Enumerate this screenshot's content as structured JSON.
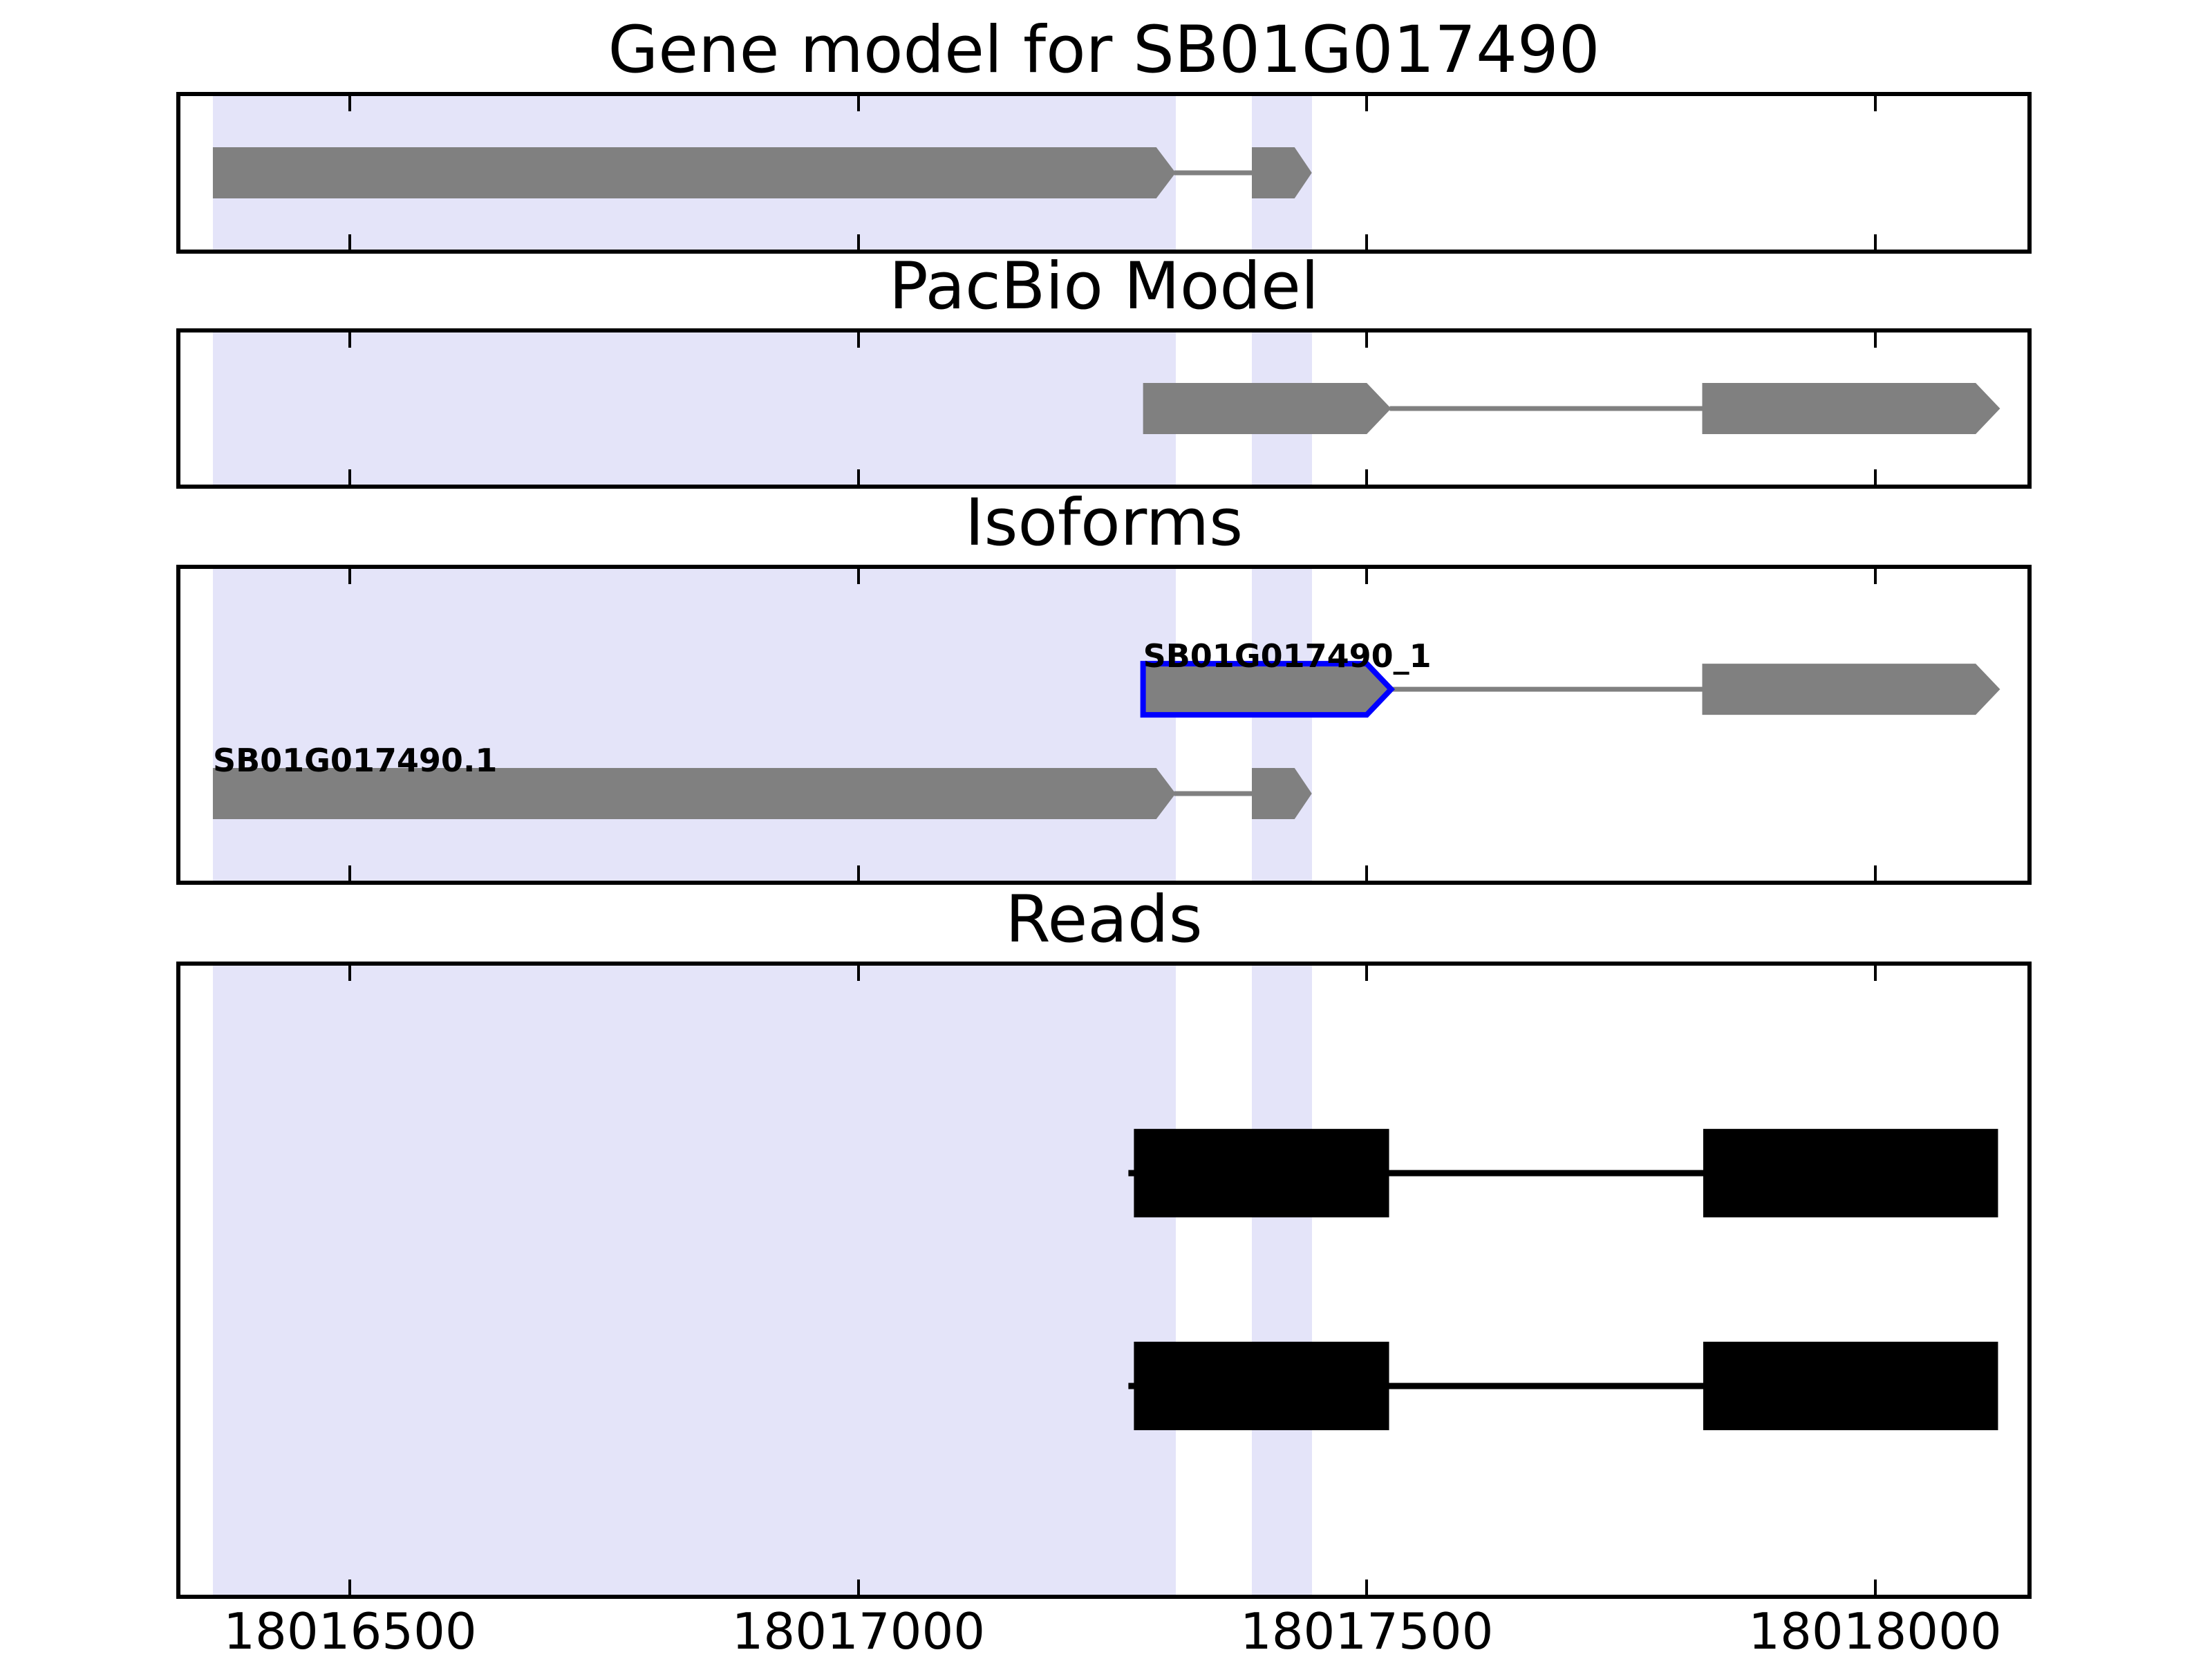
{
  "chart_data": {
    "type": "genomic-feature-tracks",
    "background": "#ffffff",
    "x_axis": {
      "min": 18016329,
      "max": 18018154,
      "ticks": [
        {
          "value": 18016500,
          "label": "18016500"
        },
        {
          "value": 18017000,
          "label": "18017000"
        },
        {
          "value": 18017500,
          "label": "18017500"
        },
        {
          "value": 18018000,
          "label": "18018000"
        }
      ]
    },
    "highlight": {
      "color": "#e4e4f9",
      "spans": [
        {
          "start": 18016365,
          "end": 18017312
        },
        {
          "start": 18017387,
          "end": 18017446
        }
      ]
    },
    "colors": {
      "model_fill": "#808080",
      "model_intron": "#808080",
      "read_fill": "#000000",
      "read_intron": "#000000",
      "selection_outline": "#0000ff",
      "axis": "#000000"
    },
    "panels": [
      {
        "title": "Gene model for SB01G017490",
        "rows": [
          {
            "kind": "model",
            "exons": [
              {
                "start": 18016365,
                "end": 18017293,
                "tip": 18017312
              },
              {
                "start": 18017387,
                "end": 18017429,
                "tip": 18017446
              }
            ]
          }
        ]
      },
      {
        "title": "PacBio Model",
        "rows": [
          {
            "kind": "model",
            "exons": [
              {
                "start": 18017280,
                "end": 18017500,
                "tip": 18017524
              },
              {
                "start": 18017830,
                "end": 18018099,
                "tip": 18018123
              }
            ]
          }
        ]
      },
      {
        "title": "Isoforms",
        "rows": [
          {
            "kind": "model",
            "label": "SB01G017490_1",
            "selected_exon": 0,
            "exons": [
              {
                "start": 18017280,
                "end": 18017500,
                "tip": 18017524
              },
              {
                "start": 18017830,
                "end": 18018099,
                "tip": 18018123
              }
            ]
          },
          {
            "kind": "model",
            "label": "SB01G017490.1",
            "exons": [
              {
                "start": 18016365,
                "end": 18017293,
                "tip": 18017312
              },
              {
                "start": 18017387,
                "end": 18017429,
                "tip": 18017446
              }
            ]
          }
        ]
      },
      {
        "title": "Reads",
        "rows": [
          {
            "kind": "read",
            "exons": [
              {
                "start": 18017271,
                "end": 18017522
              },
              {
                "start": 18017831,
                "end": 18018121
              }
            ]
          },
          {
            "kind": "read",
            "exons": [
              {
                "start": 18017271,
                "end": 18017522
              },
              {
                "start": 18017831,
                "end": 18018121
              }
            ]
          }
        ]
      }
    ]
  }
}
